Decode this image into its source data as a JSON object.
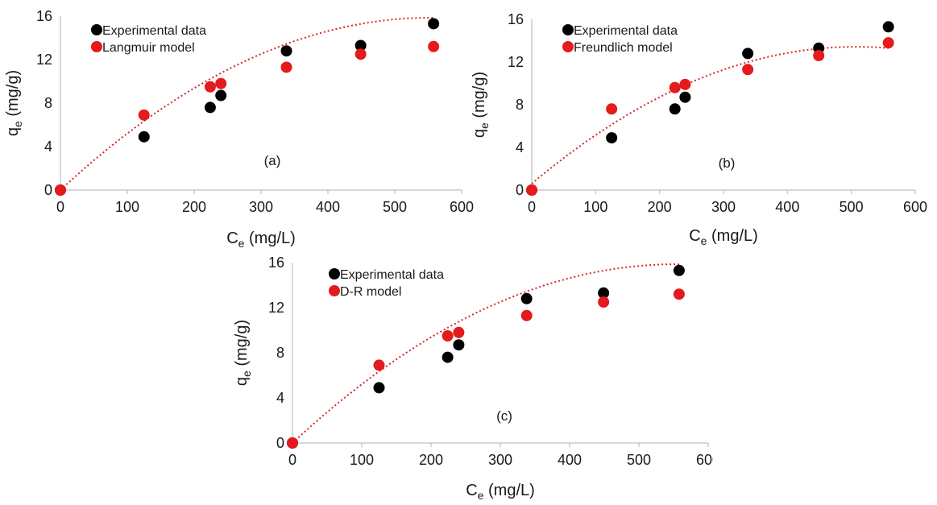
{
  "chart_data": [
    {
      "type": "scatter",
      "panel_label": "(a)",
      "xlabel": {
        "main": "C",
        "sub": "e",
        "rest": " (mg/L)"
      },
      "ylabel": {
        "main": "q",
        "sub": "e",
        "rest": " (mg/g)"
      },
      "xlim": [
        0,
        600
      ],
      "ylim": [
        0,
        16
      ],
      "xticks": [
        0,
        100,
        200,
        300,
        400,
        500,
        600
      ],
      "yticks": [
        0,
        4,
        8,
        12,
        16
      ],
      "legend_position": "top-left",
      "series": [
        {
          "name": "Experimental data",
          "color": "#000000",
          "x": [
            0,
            125,
            224,
            240,
            338,
            449,
            558
          ],
          "y": [
            0,
            4.9,
            7.6,
            8.7,
            12.8,
            13.3,
            15.3
          ]
        },
        {
          "name": "Langmuir model",
          "color": "#e41a1c",
          "x": [
            0,
            125,
            224,
            240,
            338,
            449,
            558
          ],
          "y": [
            0,
            6.9,
            9.5,
            9.8,
            11.3,
            12.5,
            13.2
          ]
        }
      ],
      "trendline": {
        "style": "dotted",
        "color": "#d62728",
        "coefficients": [
          0.0572,
          -5.16e-05,
          0
        ]
      }
    },
    {
      "type": "scatter",
      "panel_label": "(b)",
      "xlabel": {
        "main": "C",
        "sub": "e",
        "rest": " (mg/L)"
      },
      "ylabel": {
        "main": "q",
        "sub": "e",
        "rest": " (mg/g)"
      },
      "xlim": [
        0,
        600
      ],
      "ylim": [
        0,
        16
      ],
      "xticks": [
        0,
        100,
        200,
        300,
        400,
        500,
        600
      ],
      "yticks": [
        0,
        4,
        8,
        12,
        16
      ],
      "legend_position": "top-left",
      "series": [
        {
          "name": "Experimental data",
          "color": "#000000",
          "x": [
            0,
            125,
            224,
            240,
            338,
            449,
            558
          ],
          "y": [
            0,
            4.9,
            7.6,
            8.7,
            12.8,
            13.3,
            15.3
          ]
        },
        {
          "name": "Freundlich model",
          "color": "#e41a1c",
          "x": [
            0,
            125,
            224,
            240,
            338,
            449,
            558
          ],
          "y": [
            0,
            7.6,
            9.6,
            9.9,
            11.3,
            12.6,
            13.8
          ]
        }
      ],
      "trendline": {
        "style": "dotted",
        "color": "#d62728",
        "coefficients": [
          0.0505,
          -4.97e-05,
          0.6
        ]
      }
    },
    {
      "type": "scatter",
      "panel_label": "(c)",
      "xlabel": {
        "main": "C",
        "sub": "e",
        "rest": " (mg/L)"
      },
      "ylabel": {
        "main": "q",
        "sub": "e",
        "rest": " (mg/g)"
      },
      "xlim": [
        0,
        600
      ],
      "ylim": [
        0,
        16
      ],
      "xticks": [
        0,
        100,
        200,
        300,
        400,
        500,
        600
      ],
      "yticks": [
        0,
        4,
        8,
        12,
        16
      ],
      "legend_position": "top-left",
      "series": [
        {
          "name": "Experimental data",
          "color": "#000000",
          "x": [
            0,
            125,
            224,
            240,
            338,
            449,
            558
          ],
          "y": [
            0,
            4.9,
            7.6,
            8.7,
            12.8,
            13.3,
            15.3
          ]
        },
        {
          "name": "D-R model",
          "color": "#e41a1c",
          "x": [
            0,
            125,
            224,
            240,
            338,
            449,
            558
          ],
          "y": [
            0,
            6.9,
            9.5,
            9.8,
            11.3,
            12.5,
            13.2
          ]
        }
      ],
      "trendline": {
        "style": "dotted",
        "color": "#d62728",
        "coefficients": [
          0.0572,
          -5.16e-05,
          0
        ]
      }
    }
  ]
}
